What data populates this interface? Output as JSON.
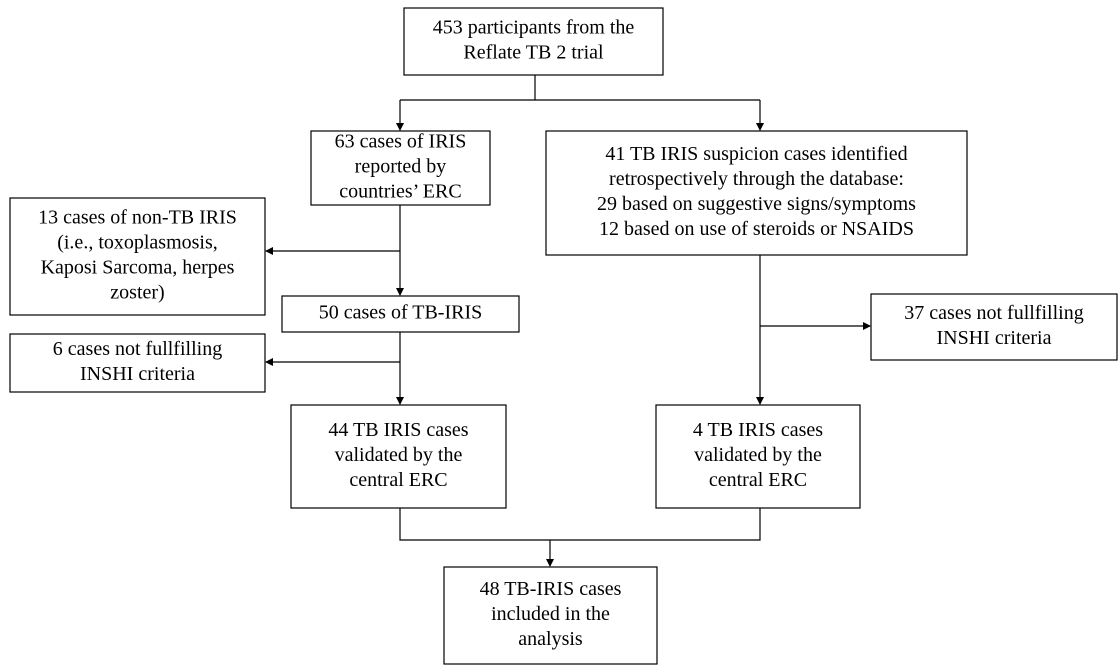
{
  "nodes": [
    {
      "lines": [
        "453 participants from the",
        "Reflate TB 2 trial"
      ]
    },
    {
      "lines": [
        "63 cases of IRIS",
        "reported by",
        "countries’ ERC"
      ]
    },
    {
      "lines": [
        "41 TB IRIS suspicion cases identified",
        "retrospectively through the database:",
        "29 based on suggestive signs/symptoms",
        "12 based on use of steroids or NSAIDS"
      ]
    },
    {
      "lines": [
        "13 cases of non-TB IRIS",
        "(i.e., toxoplasmosis,",
        "Kaposi Sarcoma, herpes",
        "zoster)"
      ]
    },
    {
      "lines": [
        "50 cases of TB-IRIS"
      ]
    },
    {
      "lines": [
        "6 cases not fullfilling",
        "INSHI criteria"
      ]
    },
    {
      "lines": [
        "37 cases not fullfilling",
        "INSHI criteria"
      ]
    },
    {
      "lines": [
        "44 TB IRIS cases",
        "validated by the",
        "central ERC"
      ]
    },
    {
      "lines": [
        "4 TB IRIS cases",
        "validated by the",
        "central ERC"
      ]
    },
    {
      "lines": [
        "48 TB-IRIS cases",
        "included in the",
        "analysis"
      ]
    }
  ]
}
